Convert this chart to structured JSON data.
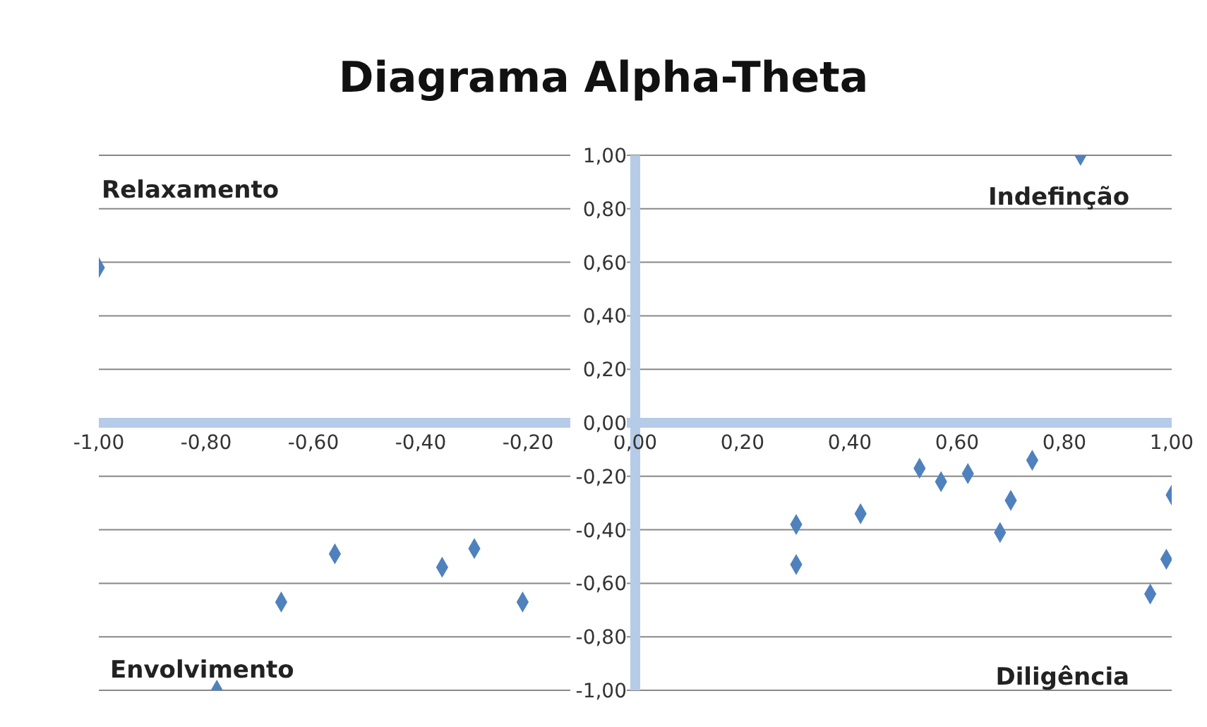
{
  "chart_data": {
    "type": "scatter",
    "title": "Diagrama Alpha-Theta",
    "x": [
      -1.0,
      -0.78,
      -0.66,
      -0.56,
      -0.36,
      -0.3,
      -0.21,
      0.3,
      0.3,
      0.42,
      0.53,
      0.57,
      0.62,
      0.68,
      0.7,
      0.74,
      0.83,
      0.96,
      0.99,
      1.0
    ],
    "series": [
      {
        "color": "#4f81bd",
        "values": [
          0.58,
          -1.0,
          -0.67,
          -0.49,
          -0.54,
          -0.47,
          -0.67,
          -0.38,
          -0.53,
          -0.34,
          -0.17,
          -0.22,
          -0.19,
          -0.41,
          -0.29,
          -0.14,
          1.0,
          -0.64,
          -0.51,
          -0.27
        ]
      }
    ],
    "marker": "diamond",
    "xlim": [
      -1,
      1
    ],
    "xticks": [
      {
        "value": -1,
        "label": "-1,00"
      },
      {
        "value": -0.8,
        "label": "-0,80"
      },
      {
        "value": -0.6,
        "label": "-0,60"
      },
      {
        "value": -0.4,
        "label": "-0,40"
      },
      {
        "value": -0.2,
        "label": "-0,20"
      },
      {
        "value": 0,
        "label": "0,00"
      },
      {
        "value": 0.2,
        "label": "0,20"
      },
      {
        "value": 0.4,
        "label": "0,40"
      },
      {
        "value": 0.6,
        "label": "0,60"
      },
      {
        "value": 0.8,
        "label": "0,80"
      },
      {
        "value": 1,
        "label": "1,00"
      }
    ],
    "ylim": [
      -1,
      1
    ],
    "yticks": [
      {
        "value": -1,
        "label": "-1,00"
      },
      {
        "value": -0.8,
        "label": "-0,80"
      },
      {
        "value": -0.6,
        "label": "-0,60"
      },
      {
        "value": -0.4,
        "label": "-0,40"
      },
      {
        "value": -0.2,
        "label": "-0,20"
      },
      {
        "value": 0,
        "label": "0,00"
      },
      {
        "value": 0.2,
        "label": "0,20"
      },
      {
        "value": 0.4,
        "label": "0,40"
      },
      {
        "value": 0.6,
        "label": "0,60"
      },
      {
        "value": 0.8,
        "label": "0,80"
      },
      {
        "value": 1,
        "label": "1,00"
      }
    ],
    "grid": "y",
    "annotations": [
      "Relaxamento",
      "Indefinção",
      "Envolvimento",
      "Diligência"
    ]
  }
}
